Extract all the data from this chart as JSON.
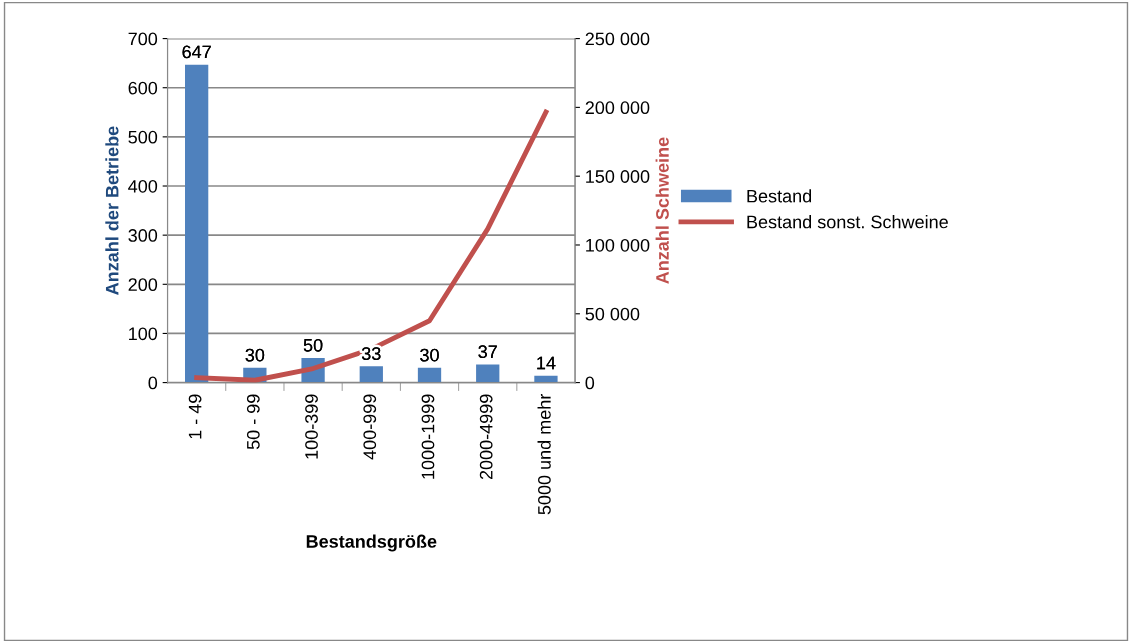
{
  "chart_data": {
    "type": "bar",
    "xlabel": "Bestandsgröße",
    "ylabel": "Anzahl der Betriebe",
    "y2label": "Anzahl Schweine",
    "categories": [
      "1 - 49",
      "50 - 99",
      "100-399",
      "400-999",
      "1000-1999",
      "2000-4999",
      "5000 und mehr"
    ],
    "series": [
      {
        "name": "Bestand",
        "color": "#4f81bd",
        "values": [
          647,
          30,
          50,
          33,
          30,
          37,
          14
        ],
        "data_labels": true
      },
      {
        "name": "Bestand sonst. Schweine",
        "color": "#c0504d",
        "type": "line",
        "axis": "y2",
        "values": [
          3600,
          1700,
          10200,
          24300,
          44900,
          111700,
          196600
        ]
      }
    ],
    "ylim": [
      0,
      700
    ],
    "yticks": [
      0,
      100,
      200,
      300,
      400,
      500,
      600,
      700
    ],
    "y2lim": [
      0,
      250000
    ],
    "y2ticks": [
      {
        "value": 0,
        "label": "0"
      },
      {
        "value": 50000,
        "label": "50 000"
      },
      {
        "value": 100000,
        "label": "100 000"
      },
      {
        "value": 150000,
        "label": "150 000"
      },
      {
        "value": 200000,
        "label": "200 000"
      },
      {
        "value": 250000,
        "label": "250 000"
      }
    ],
    "grid": "y",
    "legend": "right"
  }
}
